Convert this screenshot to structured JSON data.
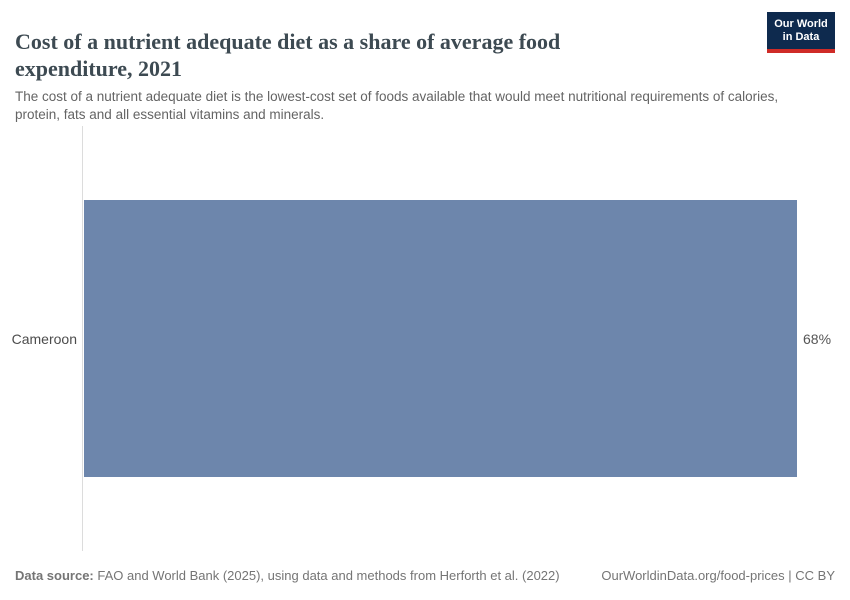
{
  "header": {
    "title": "Cost of a nutrient adequate diet as a share of average food expenditure, 2021",
    "subtitle": "The cost of a nutrient adequate diet is the lowest-cost set of foods available that would meet nutritional requirements of calories, protein, fats and all essential vitamins and minerals.",
    "logo": {
      "line1": "Our World",
      "line2": "in Data",
      "bg_color": "#0e2a4e",
      "accent_color": "#cf2b27"
    }
  },
  "chart_data": {
    "type": "bar",
    "orientation": "horizontal",
    "title": "Cost of a nutrient adequate diet as a share of average food expenditure, 2021",
    "categories": [
      "Cameroon"
    ],
    "values": [
      68
    ],
    "value_labels": [
      "68%"
    ],
    "value_suffix": "%",
    "xlim": [
      0,
      68
    ],
    "grid": false,
    "legend": false,
    "bar_color": "#6d86ac",
    "axis_line_color": "#dcdcdc"
  },
  "footer": {
    "datasource_label": "Data source:",
    "datasource_text": " FAO and World Bank (2025), using data and methods from Herforth et al. (2022)",
    "attribution": "OurWorldinData.org/food-prices | CC BY"
  }
}
